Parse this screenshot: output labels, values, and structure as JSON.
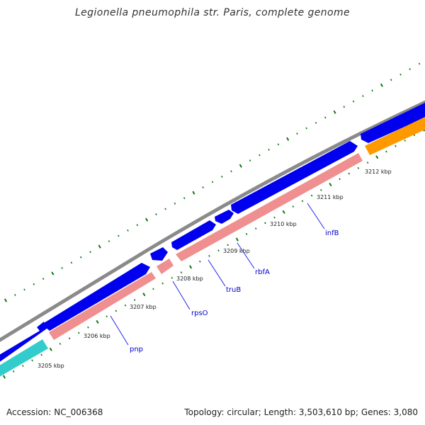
{
  "header": {
    "title": "Legionella pneumophila str. Paris, complete genome"
  },
  "footer": {
    "accession": "Accession: NC_006368",
    "summary": "Topology: circular; Length: 3,503,610 bp; Genes: 3,080"
  },
  "colors": {
    "backbone": "#8c8c8c",
    "forward_cds": "#0000ee",
    "reverse_cds": "#ef8f8f",
    "rrna": "#ff9900",
    "trna": "#33cccc",
    "gc_skew": "#117711",
    "gene_label": "#0000cc",
    "leader_line": "#2222ee"
  },
  "ruler": {
    "ticks": [
      "3205 kbp",
      "3206 kbp",
      "3207 kbp",
      "3208 kbp",
      "3209 kbp",
      "3210 kbp",
      "3211 kbp",
      "3212 kbp"
    ]
  },
  "genes": {
    "labels": [
      "pnp",
      "rpsO",
      "truB",
      "rbfA",
      "infB"
    ]
  }
}
